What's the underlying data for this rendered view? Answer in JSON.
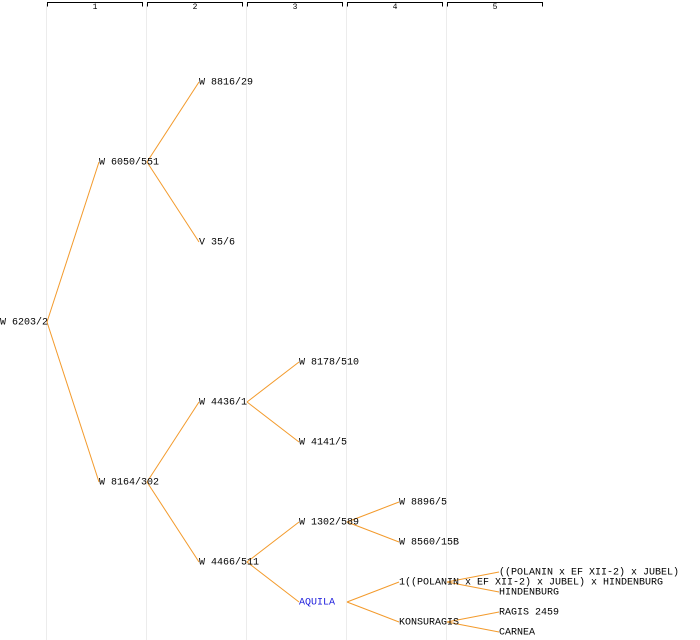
{
  "columns": [
    "1",
    "2",
    "3",
    "4",
    "5"
  ],
  "nodes": [
    {
      "label": "W 6203/2"
    },
    {
      "label": "W 6050/551"
    },
    {
      "label": "W 8164/302"
    },
    {
      "label": "W 8816/29"
    },
    {
      "label": "V 35/6"
    },
    {
      "label": "W 4436/1"
    },
    {
      "label": "W 4466/511"
    },
    {
      "label": "W 8178/510"
    },
    {
      "label": "W 4141/5"
    },
    {
      "label": "W 1302/589"
    },
    {
      "label": "AQUILA"
    },
    {
      "label": "W 8896/5"
    },
    {
      "label": "W 8560/15B"
    },
    {
      "label": "1((POLANIN x EF XII-2) x JUBEL) x HINDENBURG"
    },
    {
      "label": "KONSURAGIS"
    },
    {
      "label": "((POLANIN x EF XII-2) x JUBEL)"
    },
    {
      "label": "HINDENBURG"
    },
    {
      "label": "RAGIS 2459"
    },
    {
      "label": "CARNEA"
    }
  ]
}
